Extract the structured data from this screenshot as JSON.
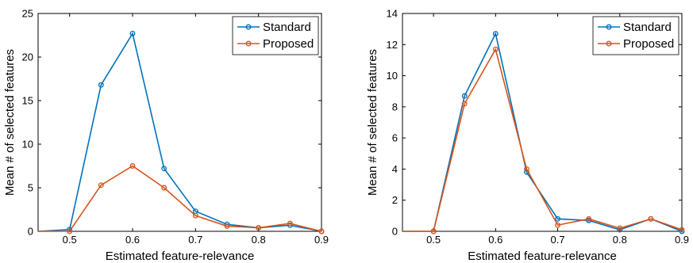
{
  "chart_data": [
    {
      "type": "line",
      "title": "",
      "xlabel": "Estimated feature-relevance",
      "ylabel": "Mean # of selected features",
      "xlim": [
        0.45,
        0.9
      ],
      "ylim": [
        0,
        25
      ],
      "xticks": [
        "0.5",
        "0.6",
        "0.7",
        "0.8",
        "0.9"
      ],
      "yticks": [
        "0",
        "5",
        "10",
        "15",
        "20",
        "25"
      ],
      "grid": false,
      "legend_position": "top-right",
      "x": [
        0.45,
        0.5,
        0.55,
        0.6,
        0.65,
        0.7,
        0.75,
        0.8,
        0.85,
        0.9
      ],
      "series": [
        {
          "name": "Standard",
          "color": "#0072BD",
          "values": [
            0,
            0.2,
            16.8,
            22.7,
            7.2,
            2.3,
            0.8,
            0.4,
            0.7,
            0
          ]
        },
        {
          "name": "Proposed",
          "color": "#D95319",
          "values": [
            0,
            0.0,
            5.3,
            7.5,
            5.0,
            1.8,
            0.6,
            0.4,
            0.9,
            0
          ]
        }
      ]
    },
    {
      "type": "line",
      "title": "",
      "xlabel": "Estimated feature-relevance",
      "ylabel": "Mean # of selected features",
      "xlim": [
        0.45,
        0.9
      ],
      "ylim": [
        0,
        14
      ],
      "xticks": [
        "0.5",
        "0.6",
        "0.7",
        "0.8",
        "0.9"
      ],
      "yticks": [
        "0",
        "2",
        "4",
        "6",
        "8",
        "10",
        "12",
        "14"
      ],
      "grid": false,
      "legend_position": "top-right",
      "x": [
        0.45,
        0.5,
        0.55,
        0.6,
        0.65,
        0.7,
        0.75,
        0.8,
        0.85,
        0.9
      ],
      "series": [
        {
          "name": "Standard",
          "color": "#0072BD",
          "values": [
            0,
            0,
            8.7,
            12.7,
            3.8,
            0.8,
            0.7,
            0.1,
            0.8,
            0.0
          ]
        },
        {
          "name": "Proposed",
          "color": "#D95319",
          "values": [
            0,
            0,
            8.2,
            11.7,
            4.0,
            0.4,
            0.8,
            0.2,
            0.8,
            0.1
          ]
        }
      ]
    }
  ]
}
